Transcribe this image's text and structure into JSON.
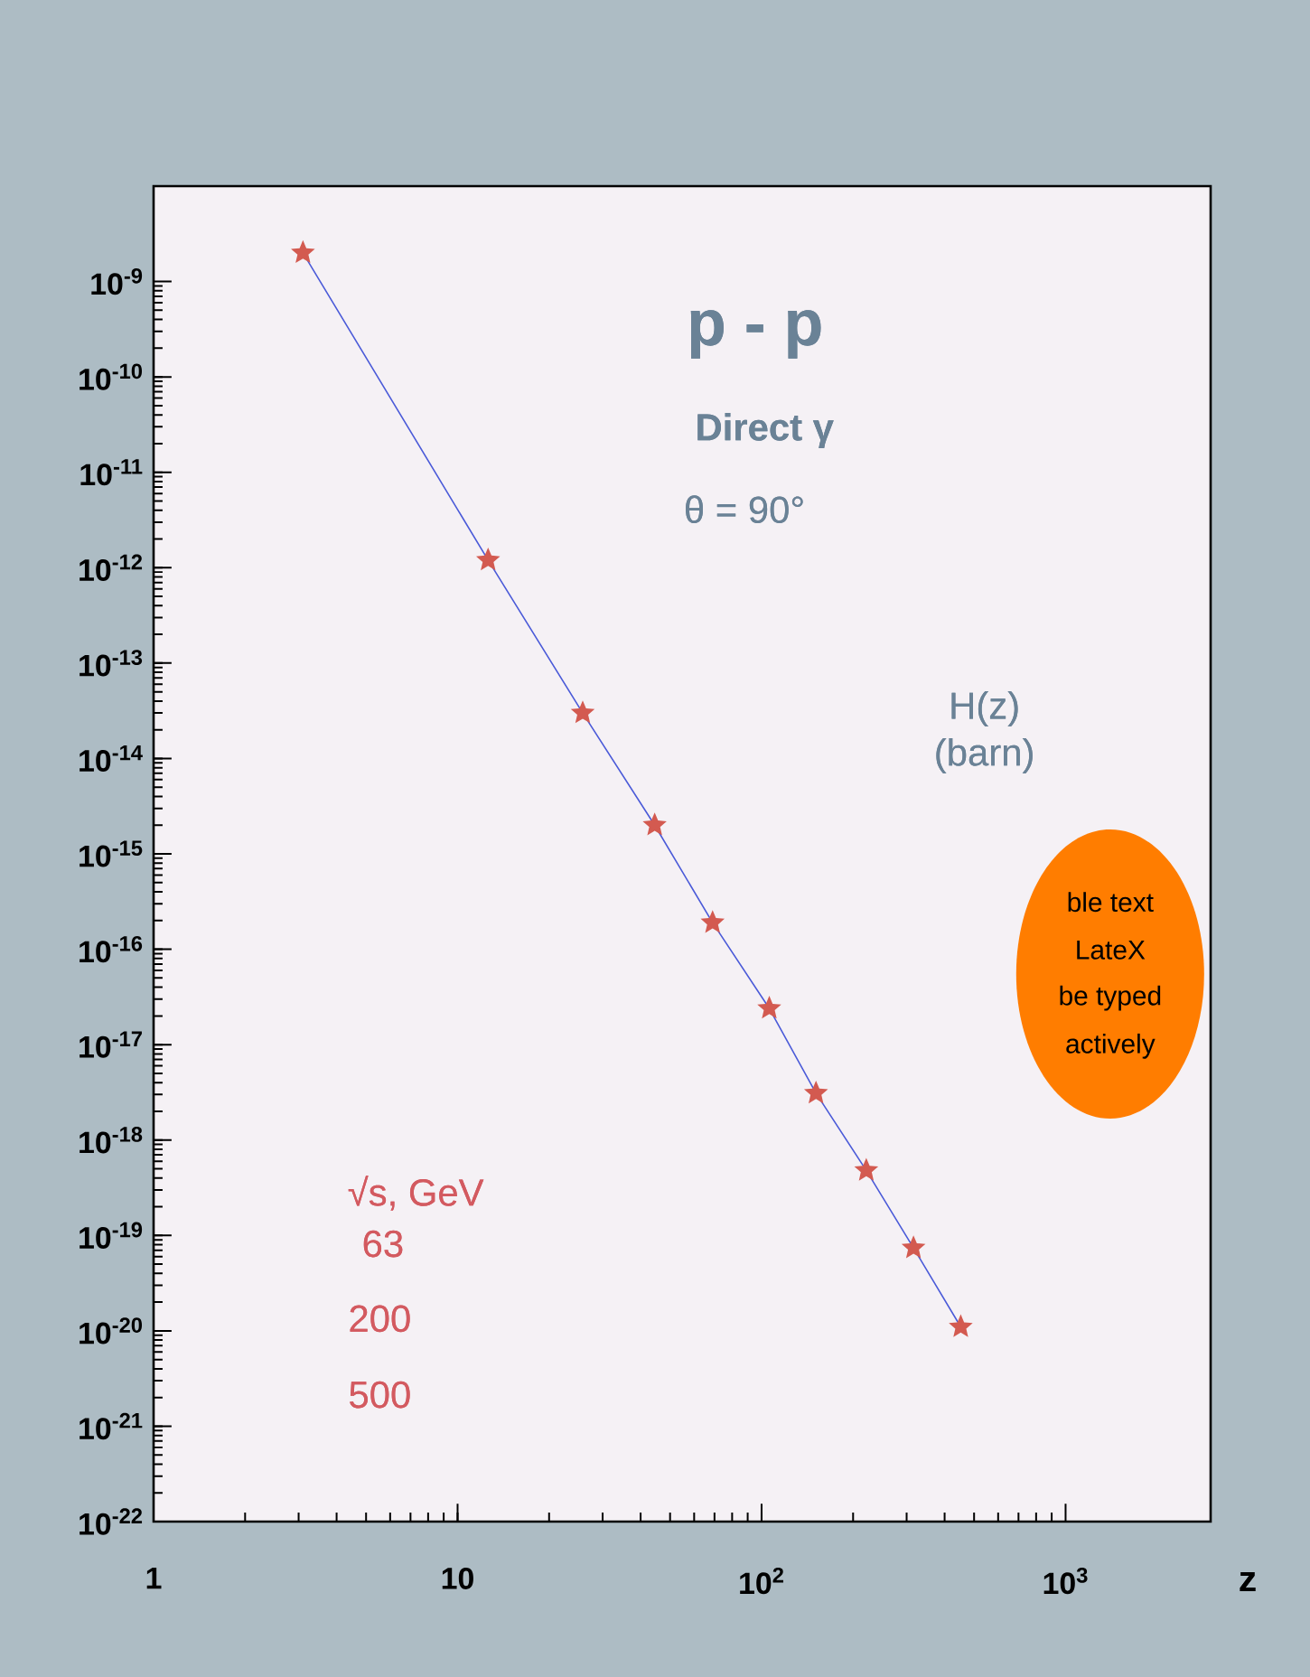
{
  "chart_data": {
    "type": "line",
    "title": "p - p",
    "subtitle": "Direct γ",
    "xlabel": "z",
    "ylabel": "H(z) (barn)",
    "annotations": [
      "θ = 90°",
      "√s, GeV",
      "63",
      "200",
      "500",
      "ble text",
      "LateX",
      "be typed",
      "actively"
    ],
    "log": "xy",
    "xlim": [
      1,
      3000
    ],
    "ylim": [
      1e-22,
      1e-08
    ],
    "xticks": [
      1,
      10,
      {
        "value": 100,
        "label": "10$^{2}$"
      },
      {
        "value": 1000,
        "label": "10$^{3}$"
      }
    ],
    "yticks": [
      {
        "value": 1e-22,
        "label": "10$^{-22}$"
      },
      {
        "value": 1e-21,
        "label": "10$^{-21}$"
      },
      {
        "value": 1e-20,
        "label": "10$^{-20}$"
      },
      {
        "value": 1e-19,
        "label": "10$^{-19}$"
      },
      {
        "value": 1e-18,
        "label": "10$^{-18}$"
      },
      {
        "value": 1e-17,
        "label": "10$^{-17}$"
      },
      {
        "value": 1e-16,
        "label": "10$^{-16}$"
      },
      {
        "value": 1e-15,
        "label": "10$^{-15}$"
      },
      {
        "value": 1e-14,
        "label": "10$^{-14}$"
      },
      {
        "value": 1e-13,
        "label": "10$^{-13}$"
      },
      {
        "value": 1e-12,
        "label": "10$^{-12}$"
      },
      {
        "value": 1e-11,
        "label": "10$^{-11}$"
      },
      {
        "value": 1e-10,
        "label": "10$^{-10}$"
      },
      {
        "value": 1e-09,
        "label": "10$^{-9}$"
      }
    ],
    "series": [
      {
        "color": "#4a5ad8",
        "marker": "none",
        "x": [
          3.1,
          12.6,
          25.8,
          44.5,
          69,
          106,
          151,
          221,
          316,
          452
        ],
        "values": [
          2e-09,
          1.2e-12,
          3e-14,
          2e-15,
          1.9e-16,
          2.4e-17,
          3.1e-18,
          4.8e-19,
          7.4e-20,
          1.1e-20
        ]
      },
      {
        "type": "scatter",
        "color": "#d35a50",
        "marker": "star",
        "x": [
          3.1,
          12.6,
          25.8,
          44.5,
          69,
          106,
          151,
          221,
          316,
          452
        ],
        "values": [
          2e-09,
          1.2e-12,
          3e-14,
          2e-15,
          1.9e-16,
          2.4e-17,
          3.1e-18,
          4.8e-19,
          7.4e-20,
          1.1e-20
        ]
      }
    ]
  }
}
